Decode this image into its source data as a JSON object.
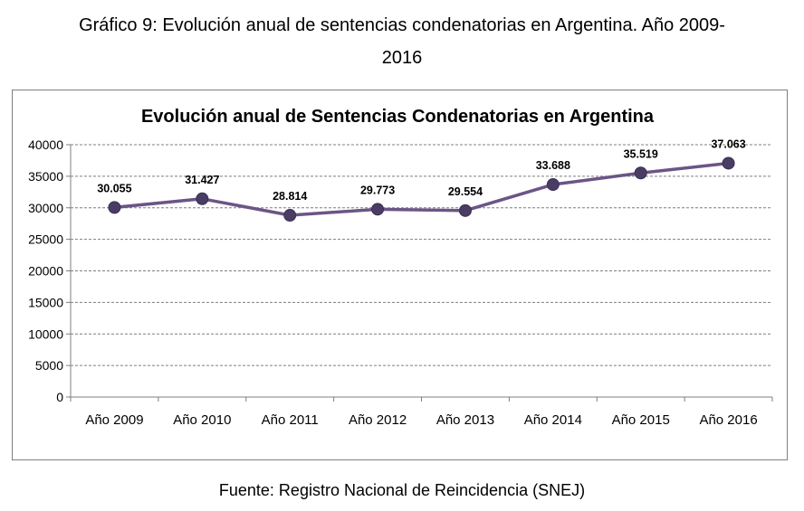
{
  "caption": {
    "line1": "Gráfico 9: Evolución anual de sentencias condenatorias en Argentina. Año 2009-",
    "line2": "2016"
  },
  "source": "Fuente: Registro Nacional de Reincidencia (SNEJ)",
  "chart_data": {
    "type": "line",
    "title": "Evolución anual de Sentencias Condenatorias en Argentina",
    "categories": [
      "Año 2009",
      "Año 2010",
      "Año 2011",
      "Año 2012",
      "Año 2013",
      "Año 2014",
      "Año 2015",
      "Año 2016"
    ],
    "values": [
      30055,
      31427,
      28814,
      29773,
      29554,
      33688,
      35519,
      37063
    ],
    "data_labels": [
      "30.055",
      "31.427",
      "28.814",
      "29.773",
      "29.554",
      "33.688",
      "35.519",
      "37.063"
    ],
    "ylim": [
      0,
      40000
    ],
    "yticks": [
      0,
      5000,
      10000,
      15000,
      20000,
      25000,
      30000,
      35000,
      40000
    ],
    "grid": true,
    "legend": "none",
    "line_color": "#6b5586",
    "marker_color": "#4a3c63"
  }
}
